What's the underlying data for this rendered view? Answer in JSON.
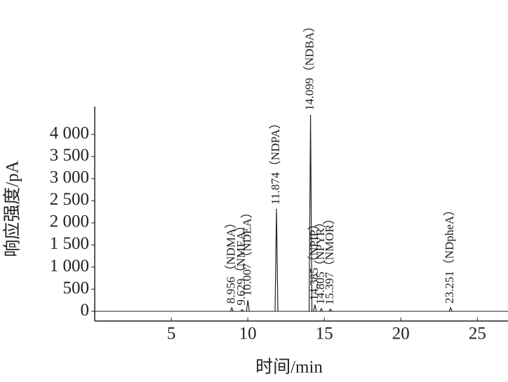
{
  "chart_data": {
    "type": "chromatogram",
    "x_label": "时间/min",
    "y_label": "响应强度/pA",
    "xlim": [
      0,
      27.0
    ],
    "ylim": [
      -220,
      4630
    ],
    "xticks": [
      5,
      10,
      15,
      20,
      25
    ],
    "yticks": [
      0,
      500,
      {
        "value": 1000,
        "label": "1 000"
      },
      {
        "value": 1500,
        "label": "1 500"
      },
      {
        "value": 2000,
        "label": "2 000"
      },
      {
        "value": 2500,
        "label": "2 500"
      },
      {
        "value": 3000,
        "label": "3 000"
      },
      {
        "value": 3500,
        "label": "3 500"
      },
      {
        "value": 4000,
        "label": "4 000"
      }
    ],
    "color": "#222",
    "peaks": {
      "x": [
        8.956,
        9.629,
        10.007,
        11.874,
        14.099,
        14.385,
        14.805,
        15.397,
        23.251
      ],
      "values": [
        80,
        40,
        250,
        2317,
        4444,
        150,
        60,
        50,
        80
      ],
      "labels": [
        "（NDMA）",
        "（NMEA）",
        "（NDEA）",
        "（NDPA）",
        "（NDBA）",
        "（NPIP）",
        "（NPYR）",
        "（NMOR）",
        "（NDpheA）"
      ]
    }
  }
}
